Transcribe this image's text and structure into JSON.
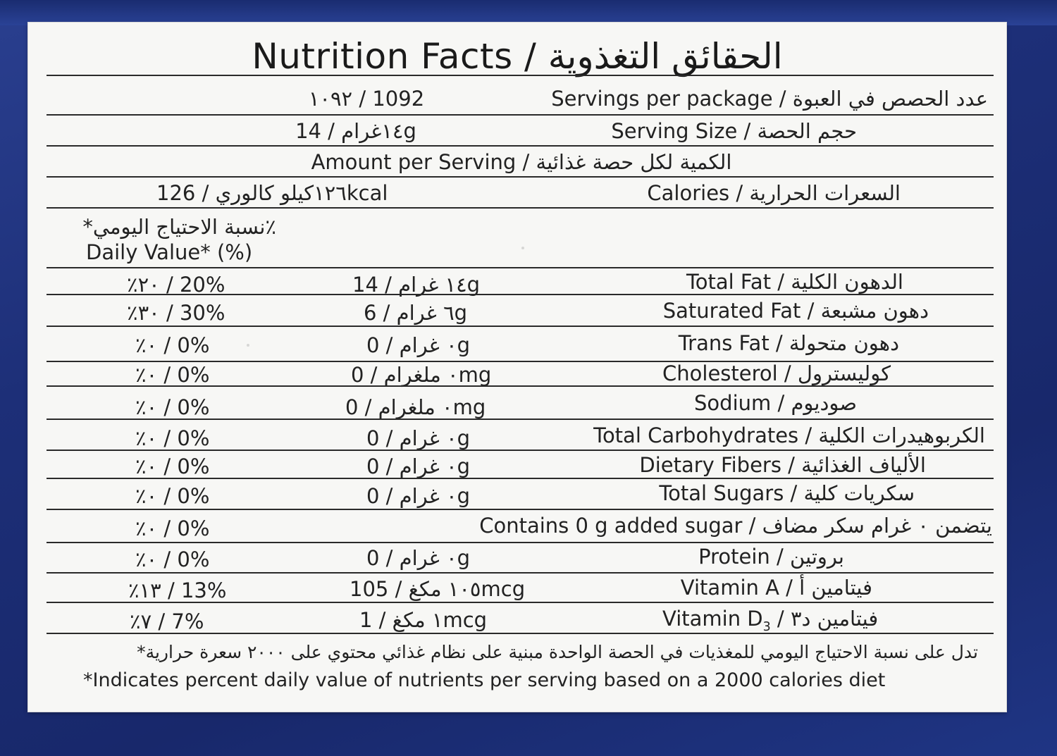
{
  "title": "Nutrition Facts / الحقائق التغذوية",
  "header_rows": {
    "servings_label": "Servings per package / عدد الحصص في العبوة",
    "servings_value": "١٠٩٢  /  1092",
    "serving_size_label": "Serving Size / حجم الحصة",
    "serving_size_value": "١٤غرام  /  14g",
    "amount_per_serving": "Amount per Serving /  الكمية لكل حصة غذائية",
    "calories_label": "Calories / السعرات الحرارية",
    "calories_value": "١٢٦كيلو كالوري  /  126kcal",
    "dv_header_ar": "٪نسبة الاحتياج اليومي*",
    "dv_header_en": "Daily Value* (%)"
  },
  "nutrients": [
    {
      "label": "Total Fat / الدهون الكلية",
      "amount": "١٤ غرام  /  14g",
      "dv": "٪٢٠ / 20%"
    },
    {
      "label": "Saturated Fat / دهون مشبعة",
      "amount": "٦ غرام / 6g",
      "dv": "٪٣٠ / 30%"
    },
    {
      "label": "Trans Fat / دهون متحولة",
      "amount": "٠ غرام / 0g",
      "dv": "٪٠ / 0%"
    },
    {
      "label": "Cholesterol / كوليسترول",
      "amount": "٠ ملغرام / 0mg",
      "dv": "٪٠ / 0%"
    },
    {
      "label": "Sodium / صوديوم",
      "amount": "٠ ملغرام / 0mg",
      "dv": "٪٠ / 0%"
    },
    {
      "label": "Total Carbohydrates / الكربوهيدرات الكلية",
      "amount": "٠ غرام / 0g",
      "dv": "٪٠ / 0%"
    },
    {
      "label": "Dietary Fibers / الألياف الغذائية",
      "amount": "٠ غرام / 0g",
      "dv": "٪٠ / 0%"
    },
    {
      "label": "Total Sugars / سكريات كلية",
      "amount": "٠ غرام / 0g",
      "dv": "٪٠ / 0%"
    },
    {
      "label": "Contains 0 g added sugar / يتضمن ٠ غرام سكر مضاف",
      "amount": "",
      "dv": "٪٠ / 0%"
    },
    {
      "label": "Protein / بروتين",
      "amount": "٠ غرام / 0g",
      "dv": "٪٠ / 0%"
    },
    {
      "label": "Vitamin A / فيتامين أ",
      "amount": "١٠٥ مكغ / 105mcg",
      "dv": "٪١٣ / 13%"
    },
    {
      "label_pre": "Vitamin D",
      "label_sub": "3",
      "label_post": " / فيتامين د٣",
      "amount": "١ مكغ / 1mcg",
      "dv": "٪٧ / 7%"
    }
  ],
  "footnote_ar": "*تدل على نسبة الاحتياج اليومي للمغذيات في الحصة الواحدة مبنية على نظام غذائي محتوي على ٢٠٠٠ سعرة حرارية",
  "footnote_en": "*Indicates percent daily value of nutrients per serving based on a 2000 calories diet"
}
